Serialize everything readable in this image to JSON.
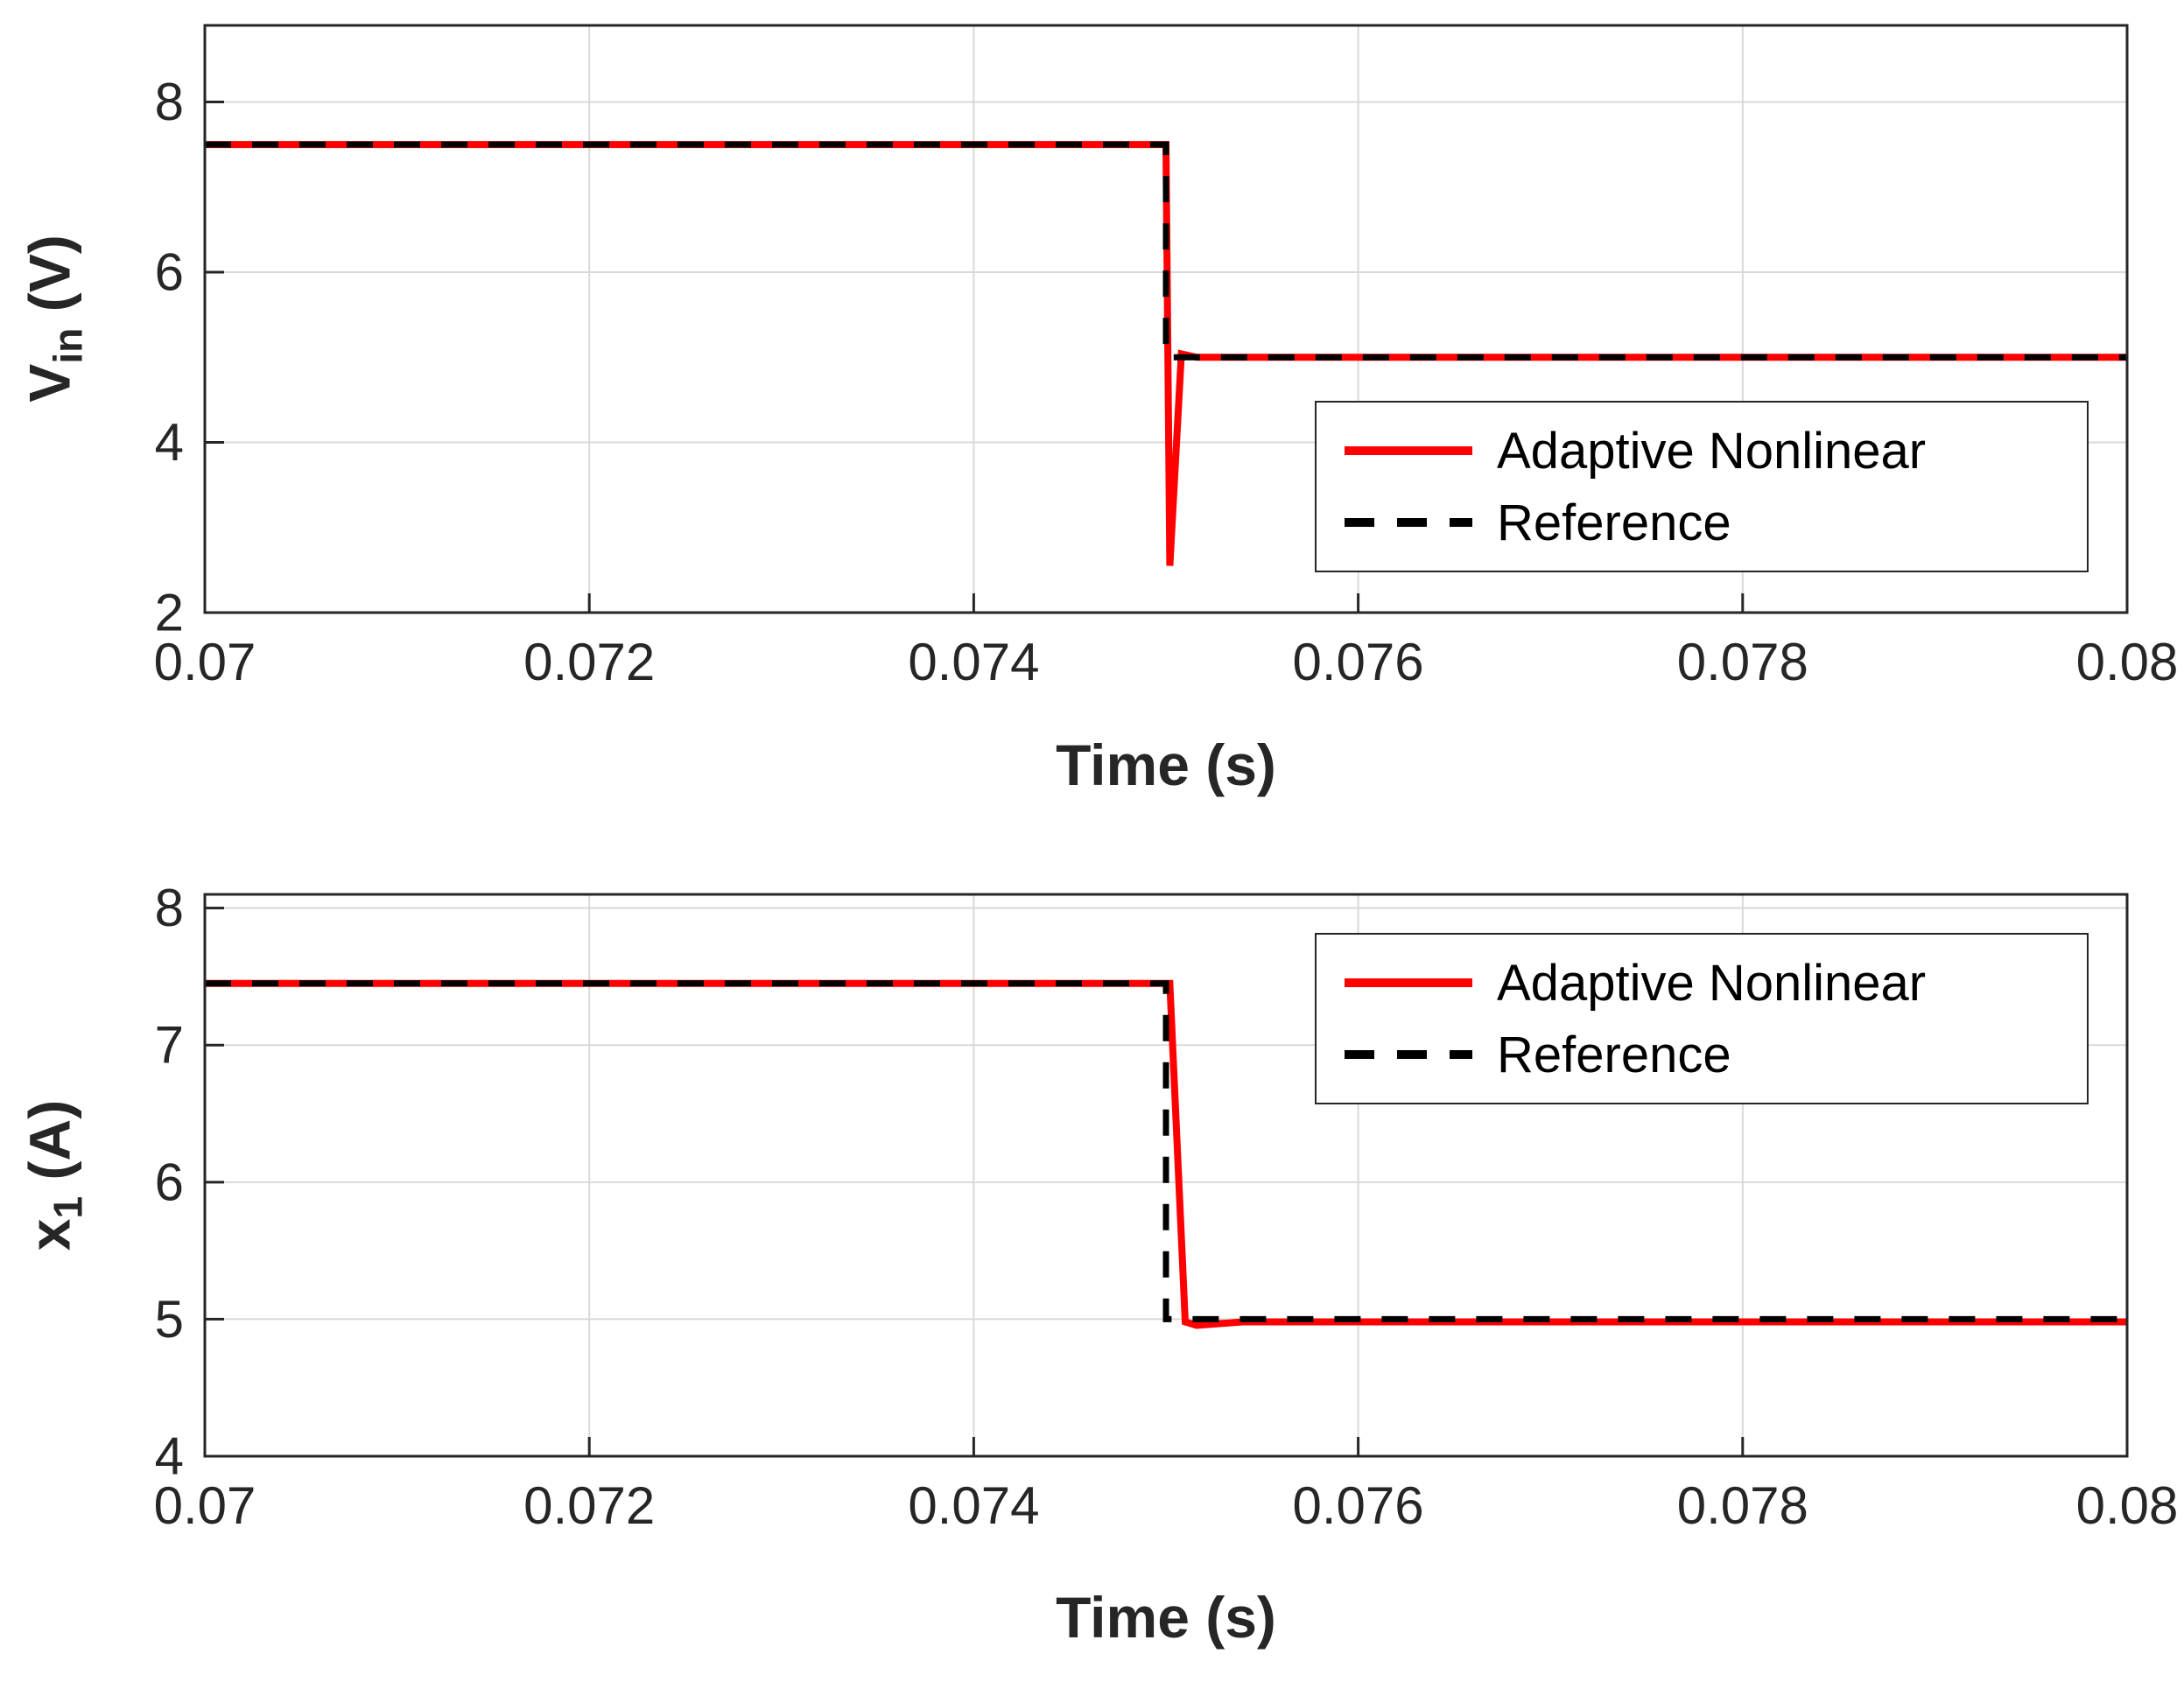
{
  "page": {
    "background": "#ffffff"
  },
  "colors": {
    "adaptive_series": "#ff0000",
    "reference_series": "#000000",
    "grid": "#d9d9d9",
    "axis": "#262626",
    "legend_border": "#262626"
  },
  "chart_data": [
    {
      "type": "line",
      "title": "",
      "xlabel": "Time (s)",
      "ylabel": {
        "main": "V",
        "sub": "in",
        "unit": " (V)"
      },
      "xlim": [
        0.07,
        0.08
      ],
      "ylim": [
        2,
        8.9
      ],
      "xticks": [
        0.07,
        0.072,
        0.074,
        0.076,
        0.078,
        0.08
      ],
      "xtick_labels": [
        "0.07",
        "0.072",
        "0.074",
        "0.076",
        "0.078",
        "0.08"
      ],
      "yticks": [
        2,
        4,
        6,
        8
      ],
      "ytick_labels": [
        "2",
        "4",
        "6",
        "8"
      ],
      "grid": true,
      "legend_position": "middle-right",
      "series": [
        {
          "name": "Adaptive Nonlinear",
          "color": "#ff0000",
          "style": "solid",
          "width": 8,
          "x": [
            0.07,
            0.075,
            0.07502,
            0.07508,
            0.07516,
            0.0752,
            0.08
          ],
          "y": [
            7.5,
            7.5,
            2.55,
            5.04,
            5.0,
            5.0,
            5.0
          ]
        },
        {
          "name": "Reference",
          "color": "#000000",
          "style": "dashed",
          "width": 7,
          "x": [
            0.07,
            0.075,
            0.075,
            0.08
          ],
          "y": [
            7.5,
            7.5,
            5.0,
            5.0
          ]
        }
      ]
    },
    {
      "type": "line",
      "title": "",
      "xlabel": "Time (s)",
      "ylabel": {
        "main": "x",
        "sub": "1",
        "unit": " (A)"
      },
      "xlim": [
        0.07,
        0.08
      ],
      "ylim": [
        4,
        8.1
      ],
      "xticks": [
        0.07,
        0.072,
        0.074,
        0.076,
        0.078,
        0.08
      ],
      "xtick_labels": [
        "0.07",
        "0.072",
        "0.074",
        "0.076",
        "0.078",
        "0.08"
      ],
      "yticks": [
        4,
        5,
        6,
        7,
        8
      ],
      "ytick_labels": [
        "4",
        "5",
        "6",
        "7",
        "8"
      ],
      "grid": true,
      "legend_position": "top-right",
      "series": [
        {
          "name": "Adaptive Nonlinear",
          "color": "#ff0000",
          "style": "solid",
          "width": 8,
          "x": [
            0.07,
            0.07502,
            0.0751,
            0.07516,
            0.0754,
            0.08
          ],
          "y": [
            7.45,
            7.45,
            4.98,
            4.955,
            4.98,
            4.98
          ]
        },
        {
          "name": "Reference",
          "color": "#000000",
          "style": "dashed",
          "width": 7,
          "x": [
            0.07,
            0.075,
            0.075,
            0.08
          ],
          "y": [
            7.45,
            7.45,
            5.0,
            5.0
          ]
        }
      ]
    }
  ]
}
